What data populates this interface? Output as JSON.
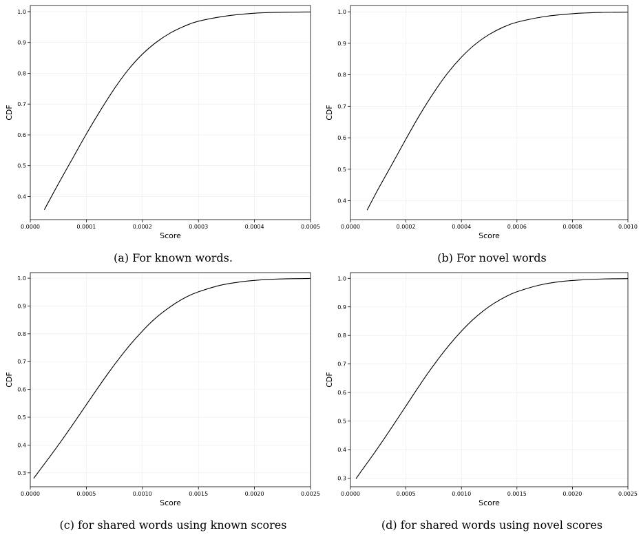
{
  "chart_data": [
    {
      "type": "line",
      "caption": "(a) For known words.",
      "xlabel": "Score",
      "ylabel": "CDF",
      "xlim": [
        0,
        0.0005
      ],
      "ylim": [
        0.325,
        1.02
      ],
      "xticks": [
        "0.0000",
        "0.0001",
        "0.0002",
        "0.0003",
        "0.0004",
        "0.0005"
      ],
      "xtick_values": [
        0,
        0.0001,
        0.0002,
        0.0003,
        0.0004,
        0.0005
      ],
      "yticks": [
        "0.4",
        "0.5",
        "0.6",
        "0.7",
        "0.8",
        "0.9",
        "1.0"
      ],
      "ytick_values": [
        0.4,
        0.5,
        0.6,
        0.7,
        0.8,
        0.9,
        1.0
      ],
      "grid": true,
      "series": [
        {
          "x": [
            2.5e-05,
            5e-05,
            7.5e-05,
            0.0001,
            0.000125,
            0.00015,
            0.000175,
            0.0002,
            0.000225,
            0.00025,
            0.000275,
            0.0003,
            0.00035,
            0.0004,
            0.00045,
            0.0005
          ],
          "y": [
            0.357,
            0.441,
            0.522,
            0.603,
            0.679,
            0.75,
            0.812,
            0.862,
            0.901,
            0.931,
            0.953,
            0.969,
            0.986,
            0.995,
            0.998,
            0.999
          ]
        }
      ]
    },
    {
      "type": "line",
      "caption": "(b) For novel words",
      "xlabel": "Score",
      "ylabel": "CDF",
      "xlim": [
        0,
        0.001
      ],
      "ylim": [
        0.34,
        1.02
      ],
      "xticks": [
        "0.0000",
        "0.0002",
        "0.0004",
        "0.0006",
        "0.0008",
        "0.0010"
      ],
      "xtick_values": [
        0,
        0.0002,
        0.0004,
        0.0006,
        0.0008,
        0.001
      ],
      "yticks": [
        "0.4",
        "0.5",
        "0.6",
        "0.7",
        "0.8",
        "0.9",
        "1.0"
      ],
      "ytick_values": [
        0.4,
        0.5,
        0.6,
        0.7,
        0.8,
        0.9,
        1.0
      ],
      "grid": true,
      "series": [
        {
          "x": [
            6e-05,
            0.0001,
            0.00015,
            0.0002,
            0.00025,
            0.0003,
            0.00035,
            0.0004,
            0.00045,
            0.0005,
            0.00055,
            0.0006,
            0.0007,
            0.0008,
            0.0009,
            0.001
          ],
          "y": [
            0.37,
            0.437,
            0.516,
            0.596,
            0.673,
            0.743,
            0.805,
            0.856,
            0.897,
            0.928,
            0.951,
            0.967,
            0.985,
            0.994,
            0.998,
            0.999
          ]
        }
      ]
    },
    {
      "type": "line",
      "caption": "(c) for shared words using known scores",
      "xlabel": "Score",
      "ylabel": "CDF",
      "xlim": [
        0,
        0.0025
      ],
      "ylim": [
        0.25,
        1.02
      ],
      "xticks": [
        "0.0000",
        "0.0005",
        "0.0010",
        "0.0015",
        "0.0020",
        "0.0025"
      ],
      "xtick_values": [
        0,
        0.0005,
        0.001,
        0.0015,
        0.002,
        0.0025
      ],
      "yticks": [
        "0.3",
        "0.4",
        "0.5",
        "0.6",
        "0.7",
        "0.8",
        "0.9",
        "1.0"
      ],
      "ytick_values": [
        0.3,
        0.4,
        0.5,
        0.6,
        0.7,
        0.8,
        0.9,
        1.0
      ],
      "grid": true,
      "series": [
        {
          "x": [
            3e-05,
            0.0001,
            0.0002,
            0.0003,
            0.0004,
            0.0005,
            0.0006,
            0.0007,
            0.0008,
            0.0009,
            0.001,
            0.0011,
            0.0012,
            0.0013,
            0.0014,
            0.0015,
            0.0017,
            0.0019,
            0.0021,
            0.0023,
            0.0025
          ],
          "y": [
            0.28,
            0.318,
            0.372,
            0.428,
            0.486,
            0.545,
            0.604,
            0.661,
            0.715,
            0.765,
            0.81,
            0.85,
            0.883,
            0.911,
            0.934,
            0.951,
            0.975,
            0.988,
            0.995,
            0.998,
            0.999
          ]
        }
      ]
    },
    {
      "type": "line",
      "caption": "(d) for shared words using novel scores",
      "xlabel": "Score",
      "ylabel": "CDF",
      "xlim": [
        0,
        0.0025
      ],
      "ylim": [
        0.27,
        1.02
      ],
      "xticks": [
        "0.0000",
        "0.0005",
        "0.0010",
        "0.0015",
        "0.0020",
        "0.0025"
      ],
      "xtick_values": [
        0,
        0.0005,
        0.001,
        0.0015,
        0.002,
        0.0025
      ],
      "yticks": [
        "0.3",
        "0.4",
        "0.5",
        "0.6",
        "0.7",
        "0.8",
        "0.9",
        "1.0"
      ],
      "ytick_values": [
        0.3,
        0.4,
        0.5,
        0.6,
        0.7,
        0.8,
        0.9,
        1.0
      ],
      "grid": true,
      "series": [
        {
          "x": [
            5e-05,
            0.0001,
            0.0002,
            0.0003,
            0.0004,
            0.0005,
            0.0006,
            0.0007,
            0.0008,
            0.0009,
            0.001,
            0.0011,
            0.0012,
            0.0013,
            0.0014,
            0.0015,
            0.0017,
            0.0019,
            0.0021,
            0.0023,
            0.0025
          ],
          "y": [
            0.298,
            0.326,
            0.38,
            0.436,
            0.494,
            0.553,
            0.612,
            0.669,
            0.722,
            0.771,
            0.815,
            0.854,
            0.887,
            0.914,
            0.936,
            0.953,
            0.976,
            0.989,
            0.995,
            0.998,
            0.999
          ]
        }
      ]
    }
  ]
}
